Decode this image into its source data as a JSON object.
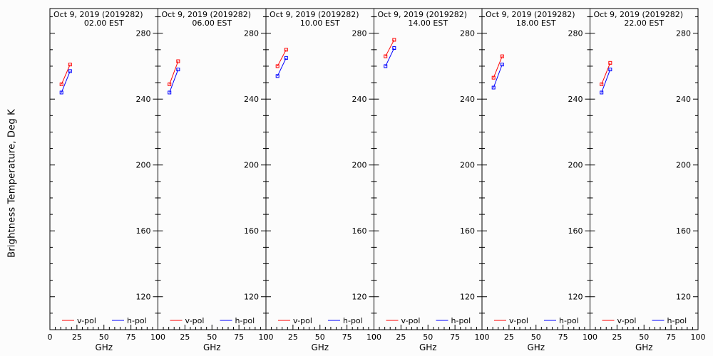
{
  "ylabel": "Brightness Temperature, Deg K",
  "chart_data": [
    {
      "type": "line",
      "title": "Oct  9, 2019 (2019282)",
      "subtitle": "02.00 EST",
      "xlabel": "GHz",
      "xlim": [
        0,
        100
      ],
      "ylim": [
        100,
        295
      ],
      "xticks": [
        0,
        25,
        50,
        75,
        100
      ],
      "yticks": [
        120,
        160,
        200,
        240,
        280
      ],
      "series": [
        {
          "name": "v-pol",
          "color": "#ff0000",
          "x": [
            10.7,
            18.7
          ],
          "y": [
            249,
            261
          ]
        },
        {
          "name": "h-pol",
          "color": "#0000ff",
          "x": [
            10.7,
            18.7
          ],
          "y": [
            244,
            257
          ]
        }
      ]
    },
    {
      "type": "line",
      "title": "Oct  9, 2019 (2019282)",
      "subtitle": "06.00 EST",
      "xlabel": "GHz",
      "xlim": [
        0,
        100
      ],
      "ylim": [
        100,
        295
      ],
      "xticks": [
        0,
        25,
        50,
        75,
        100
      ],
      "yticks": [
        120,
        160,
        200,
        240,
        280
      ],
      "series": [
        {
          "name": "v-pol",
          "color": "#ff0000",
          "x": [
            10.7,
            18.7
          ],
          "y": [
            249,
            263
          ]
        },
        {
          "name": "h-pol",
          "color": "#0000ff",
          "x": [
            10.7,
            18.7
          ],
          "y": [
            244,
            258
          ]
        }
      ]
    },
    {
      "type": "line",
      "title": "Oct  9, 2019 (2019282)",
      "subtitle": "10.00 EST",
      "xlabel": "GHz",
      "xlim": [
        0,
        100
      ],
      "ylim": [
        100,
        295
      ],
      "xticks": [
        0,
        25,
        50,
        75,
        100
      ],
      "yticks": [
        120,
        160,
        200,
        240,
        280
      ],
      "series": [
        {
          "name": "v-pol",
          "color": "#ff0000",
          "x": [
            10.7,
            18.7
          ],
          "y": [
            260,
            270
          ]
        },
        {
          "name": "h-pol",
          "color": "#0000ff",
          "x": [
            10.7,
            18.7
          ],
          "y": [
            254,
            265
          ]
        }
      ]
    },
    {
      "type": "line",
      "title": "Oct  9, 2019 (2019282)",
      "subtitle": "14.00 EST",
      "xlabel": "GHz",
      "xlim": [
        0,
        100
      ],
      "ylim": [
        100,
        295
      ],
      "xticks": [
        0,
        25,
        50,
        75,
        100
      ],
      "yticks": [
        120,
        160,
        200,
        240,
        280
      ],
      "series": [
        {
          "name": "v-pol",
          "color": "#ff0000",
          "x": [
            10.7,
            18.7
          ],
          "y": [
            266,
            276
          ]
        },
        {
          "name": "h-pol",
          "color": "#0000ff",
          "x": [
            10.7,
            18.7
          ],
          "y": [
            260,
            271
          ]
        }
      ]
    },
    {
      "type": "line",
      "title": "Oct  9, 2019 (2019282)",
      "subtitle": "18.00 EST",
      "xlabel": "GHz",
      "xlim": [
        0,
        100
      ],
      "ylim": [
        100,
        295
      ],
      "xticks": [
        0,
        25,
        50,
        75,
        100
      ],
      "yticks": [
        120,
        160,
        200,
        240,
        280
      ],
      "series": [
        {
          "name": "v-pol",
          "color": "#ff0000",
          "x": [
            10.7,
            18.7
          ],
          "y": [
            253,
            266
          ]
        },
        {
          "name": "h-pol",
          "color": "#0000ff",
          "x": [
            10.7,
            18.7
          ],
          "y": [
            247,
            261
          ]
        }
      ]
    },
    {
      "type": "line",
      "title": "Oct  9, 2019 (2019282)",
      "subtitle": "22.00 EST",
      "xlabel": "GHz",
      "xlim": [
        0,
        100
      ],
      "ylim": [
        100,
        295
      ],
      "xticks": [
        0,
        25,
        50,
        75,
        100
      ],
      "yticks": [
        120,
        160,
        200,
        240,
        280
      ],
      "series": [
        {
          "name": "v-pol",
          "color": "#ff0000",
          "x": [
            10.7,
            18.7
          ],
          "y": [
            249,
            262
          ]
        },
        {
          "name": "h-pol",
          "color": "#0000ff",
          "x": [
            10.7,
            18.7
          ],
          "y": [
            244,
            258
          ]
        }
      ]
    }
  ]
}
